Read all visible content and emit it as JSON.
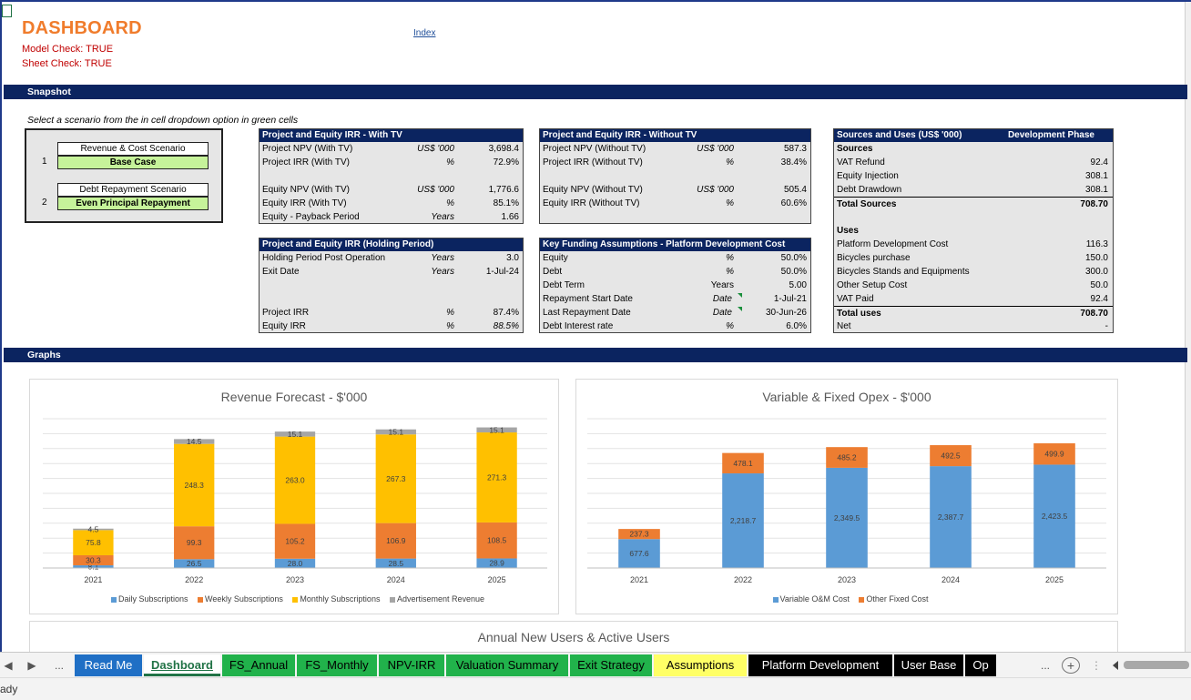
{
  "header": {
    "title": "DASHBOARD",
    "model_check": "Model Check: TRUE",
    "sheet_check": "Sheet Check: TRUE",
    "index_link": "Index"
  },
  "snapshot": {
    "band": "Snapshot",
    "note": "Select a scenario from the in cell dropdown option in green cells",
    "scenarios": [
      {
        "num": "1",
        "label": "Revenue & Cost Scenario",
        "value": "Base Case"
      },
      {
        "num": "2",
        "label": "Debt Repayment Scenario",
        "value": "Even Principal Repayment"
      }
    ],
    "with_tv": {
      "title": "Project and Equity IRR - With TV",
      "rows": [
        {
          "label": "Project NPV (With TV)",
          "unit": "US$ '000",
          "value": "3,698.4"
        },
        {
          "label": "Project IRR  (With TV)",
          "unit": "%",
          "value": "72.9%"
        },
        {
          "label": "Equity NPV (With TV)",
          "unit": "US$ '000",
          "value": "1,776.6"
        },
        {
          "label": "Equity IRR  (With TV)",
          "unit": "%",
          "value": "85.1%"
        },
        {
          "label": "Equity - Payback Period",
          "unit": "Years",
          "value": "1.66"
        }
      ]
    },
    "without_tv": {
      "title": "Project and Equity IRR - Without TV",
      "rows": [
        {
          "label": "Project NPV (Without TV)",
          "unit": "US$ '000",
          "value": "587.3"
        },
        {
          "label": "Project IRR (Without TV)",
          "unit": "%",
          "value": "38.4%"
        },
        {
          "label": "Equity NPV (Without TV)",
          "unit": "US$ '000",
          "value": "505.4"
        },
        {
          "label": "Equity IRR (Without TV)",
          "unit": "%",
          "value": "60.6%"
        }
      ]
    },
    "holding": {
      "title": "Project and Equity IRR (Holding Period)",
      "rows": [
        {
          "label": "Holding Period Post Operation",
          "unit": "Years",
          "value": "3.0"
        },
        {
          "label": "Exit Date",
          "unit": "Years",
          "value": "1-Jul-24"
        },
        {
          "label": "Project IRR",
          "unit": "%",
          "value": "87.4%"
        },
        {
          "label": "Equity IRR",
          "unit": "%",
          "value": "88.5%"
        }
      ]
    },
    "funding": {
      "title": "Key Funding Assumptions - Platform Development Cost",
      "rows": [
        {
          "label": "Equity",
          "unit": "%",
          "value": "50.0%"
        },
        {
          "label": "Debt",
          "unit": "%",
          "value": "50.0%"
        },
        {
          "label": "Debt Term",
          "unit": "Years",
          "value": "5.00"
        },
        {
          "label": "Repayment Start Date",
          "unit": "Date",
          "value": "1-Jul-21"
        },
        {
          "label": "Last Repayment Date",
          "unit": "Date",
          "value": "30-Jun-26"
        },
        {
          "label": "Debt Interest rate",
          "unit": "%",
          "value": "6.0%"
        }
      ]
    },
    "sources_uses": {
      "title": "Sources and Uses (US$ '000)",
      "phase": "Development Phase",
      "sources_heading": "Sources",
      "sources": [
        {
          "label": "VAT Refund",
          "value": "92.4"
        },
        {
          "label": "Equity Injection",
          "value": "308.1"
        },
        {
          "label": "Debt Drawdown",
          "value": "308.1"
        }
      ],
      "total_sources": {
        "label": "Total Sources",
        "value": "708.70"
      },
      "uses_heading": "Uses",
      "uses": [
        {
          "label": "Platform Development Cost",
          "value": "116.3"
        },
        {
          "label": "Bicycles purchase",
          "value": "150.0"
        },
        {
          "label": "Bicycles Stands and Equipments",
          "value": "300.0"
        },
        {
          "label": "Other Setup Cost",
          "value": "50.0"
        },
        {
          "label": "VAT Paid",
          "value": "92.4"
        }
      ],
      "total_uses": {
        "label": "Total uses",
        "value": "708.70"
      },
      "net": {
        "label": "Net",
        "value": "-"
      }
    }
  },
  "graphs_band": "Graphs",
  "chart_data": [
    {
      "type": "bar",
      "stacked": true,
      "title": "Revenue Forecast - $'000",
      "categories": [
        "2021",
        "2022",
        "2023",
        "2024",
        "2025"
      ],
      "series": [
        {
          "name": "Daily Subscriptions",
          "color": "#5b9bd5",
          "values": [
            8.1,
            26.5,
            28.0,
            28.5,
            28.9
          ]
        },
        {
          "name": "Weekly Subscriptions",
          "color": "#ed7d31",
          "values": [
            30.3,
            99.3,
            105.2,
            106.9,
            108.5
          ]
        },
        {
          "name": "Monthly Subscriptions",
          "color": "#ffc000",
          "values": [
            75.8,
            248.3,
            263.0,
            267.3,
            271.3
          ]
        },
        {
          "name": "Advertisement Revenue",
          "color": "#a5a5a5",
          "values": [
            4.5,
            14.5,
            15.1,
            15.1,
            15.1
          ]
        }
      ],
      "ylim": [
        0,
        450
      ],
      "grid": true,
      "legend": "bottom"
    },
    {
      "type": "bar",
      "stacked": true,
      "title": "Variable & Fixed Opex - $'000",
      "categories": [
        "2021",
        "2022",
        "2023",
        "2024",
        "2025"
      ],
      "series": [
        {
          "name": "Variable O&M Cost",
          "color": "#5b9bd5",
          "values": [
            677.6,
            2218.7,
            2349.5,
            2387.7,
            2423.5
          ]
        },
        {
          "name": "Other Fixed Cost",
          "color": "#ed7d31",
          "values": [
            237.3,
            478.1,
            485.2,
            492.5,
            499.9
          ]
        }
      ],
      "ylim": [
        0,
        3500
      ],
      "grid": true,
      "legend": "bottom"
    }
  ],
  "next_chart_title": "Annual New Users & Active Users",
  "tabs": [
    {
      "label": "Read Me",
      "bg": "#1f6fc5",
      "fg": "#ffffff"
    },
    {
      "label": "Dashboard",
      "bg": "#ffffff",
      "fg": "#217346",
      "active": true
    },
    {
      "label": "FS_Annual",
      "bg": "#21b24b",
      "fg": "#000000"
    },
    {
      "label": "FS_Monthly",
      "bg": "#21b24b",
      "fg": "#000000"
    },
    {
      "label": "NPV-IRR",
      "bg": "#21b24b",
      "fg": "#000000"
    },
    {
      "label": "Valuation Summary",
      "bg": "#21b24b",
      "fg": "#000000"
    },
    {
      "label": "Exit Strategy",
      "bg": "#21b24b",
      "fg": "#000000"
    },
    {
      "label": "Assumptions",
      "bg": "#ffff66",
      "fg": "#000000"
    },
    {
      "label": "Platform Development",
      "bg": "#000000",
      "fg": "#ffffff"
    },
    {
      "label": "User Base",
      "bg": "#000000",
      "fg": "#ffffff"
    },
    {
      "label": "Op",
      "bg": "#000000",
      "fg": "#ffffff"
    }
  ],
  "tab_nav": {
    "prev": "◀",
    "next": "▶",
    "more_left": "...",
    "more_right": "...",
    "add": "+"
  },
  "status": {
    "text": "ady"
  }
}
